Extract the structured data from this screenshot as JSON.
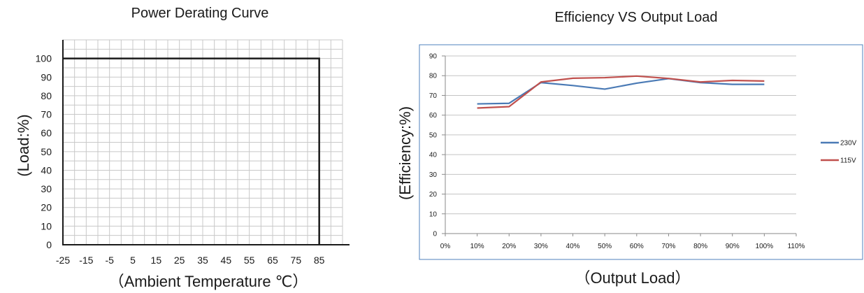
{
  "chart_data": [
    {
      "type": "line",
      "title": "Power Derating Curve",
      "xlabel": "（Ambient Temperature ℃）",
      "ylabel": "(Load:%)",
      "x_ticks": [
        "-25",
        "-15",
        "-5",
        "5",
        "15",
        "25",
        "35",
        "45",
        "55",
        "65",
        "75",
        "85"
      ],
      "y_ticks": [
        "0",
        "10",
        "20",
        "30",
        "40",
        "50",
        "60",
        "70",
        "80",
        "90",
        "100"
      ],
      "xlim": [
        -25,
        95
      ],
      "ylim": [
        0,
        110
      ],
      "grid": true,
      "series": [
        {
          "x": [
            -25,
            85,
            85
          ],
          "y": [
            100,
            100,
            0
          ]
        }
      ]
    },
    {
      "type": "line",
      "title": "Efficiency VS Output Load",
      "xlabel": "（Output Load）",
      "ylabel": "(Efficiency:%)",
      "x_ticks": [
        "0%",
        "10%",
        "20%",
        "30%",
        "40%",
        "50%",
        "60%",
        "70%",
        "80%",
        "90%",
        "100%",
        "110%"
      ],
      "y_ticks": [
        "0",
        "10",
        "20",
        "30",
        "40",
        "50",
        "60",
        "70",
        "80",
        "90"
      ],
      "xlim": [
        0,
        110
      ],
      "ylim": [
        0,
        90
      ],
      "grid": true,
      "legend_position": "right",
      "series": [
        {
          "name": "230V",
          "color": "#4a7ab5",
          "x": [
            10,
            20,
            30,
            40,
            50,
            60,
            70,
            80,
            90,
            100
          ],
          "y": [
            65.7,
            66.0,
            76.5,
            75.0,
            73.2,
            76.2,
            78.5,
            76.5,
            75.6,
            75.6
          ]
        },
        {
          "name": "115V",
          "color": "#c0504d",
          "x": [
            10,
            20,
            30,
            40,
            50,
            60,
            70,
            80,
            90,
            100
          ],
          "y": [
            63.6,
            64.3,
            76.8,
            78.7,
            79.0,
            79.8,
            78.6,
            76.8,
            77.6,
            77.3
          ]
        }
      ]
    }
  ]
}
